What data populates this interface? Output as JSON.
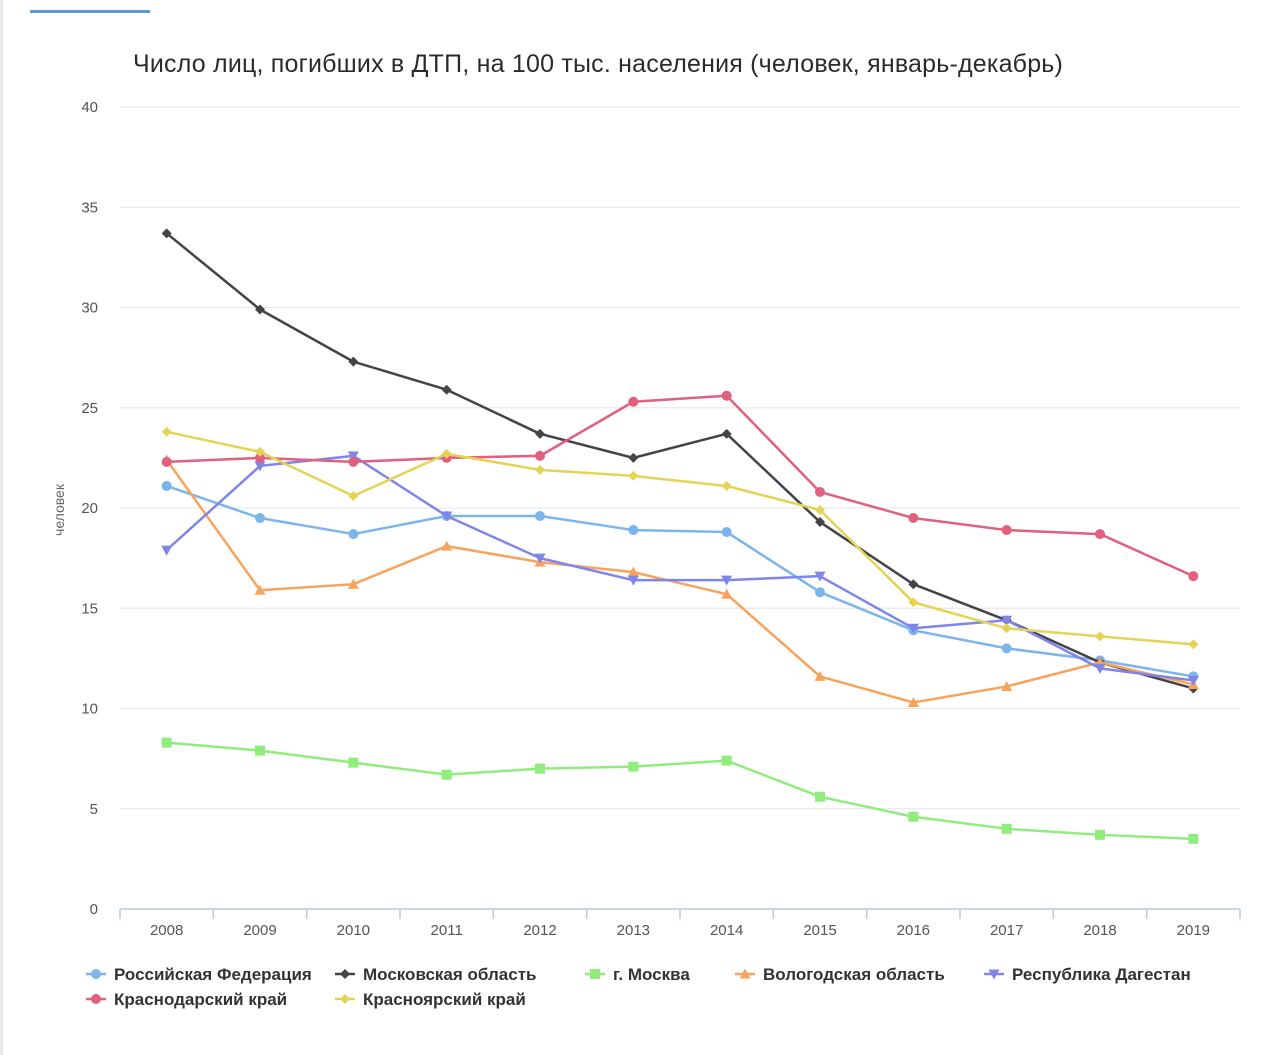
{
  "colors": {
    "background": "#ffffff",
    "grid": "#e6e6e6",
    "axis": "#b8c9dc",
    "accent": "#5b9bd5"
  },
  "chart_data": {
    "type": "line",
    "title": "Число лиц, погибших в ДТП, на 100 тыс. населения (человек, январь-декабрь)",
    "xlabel": "",
    "ylabel": "человек",
    "ylim": [
      0,
      40
    ],
    "yticks": [
      0,
      5,
      10,
      15,
      20,
      25,
      30,
      35,
      40
    ],
    "grid": true,
    "legend_position": "bottom",
    "categories": [
      "2008",
      "2009",
      "2010",
      "2011",
      "2012",
      "2013",
      "2014",
      "2015",
      "2016",
      "2017",
      "2018",
      "2019"
    ],
    "series": [
      {
        "name": "Российская Федерация",
        "color": "#7cb5ec",
        "marker": "circle",
        "values": [
          21.1,
          19.5,
          18.7,
          19.6,
          19.6,
          18.9,
          18.8,
          15.8,
          13.9,
          13.0,
          12.4,
          11.6
        ]
      },
      {
        "name": "Московская область",
        "color": "#434348",
        "marker": "diamond",
        "values": [
          33.7,
          29.9,
          27.3,
          25.9,
          23.7,
          22.5,
          23.7,
          19.3,
          16.2,
          14.4,
          12.3,
          11.0
        ]
      },
      {
        "name": "г. Москва",
        "color": "#90ed7d",
        "marker": "square",
        "values": [
          8.3,
          7.9,
          7.3,
          6.7,
          7.0,
          7.1,
          7.4,
          5.6,
          4.6,
          4.0,
          3.7,
          3.5
        ]
      },
      {
        "name": "Вологодская область",
        "color": "#f7a35c",
        "marker": "triangle",
        "values": [
          22.4,
          15.9,
          16.2,
          18.1,
          17.3,
          16.8,
          15.7,
          11.6,
          10.3,
          11.1,
          12.3,
          11.2
        ]
      },
      {
        "name": "Республика Дагестан",
        "color": "#8085e9",
        "marker": "triangle-down",
        "values": [
          17.9,
          22.1,
          22.6,
          19.6,
          17.5,
          16.4,
          16.4,
          16.6,
          14.0,
          14.4,
          12.0,
          11.4
        ]
      },
      {
        "name": "Краснодарский край",
        "color": "#e0607e",
        "marker": "circle",
        "values": [
          22.3,
          22.5,
          22.3,
          22.5,
          22.6,
          25.3,
          25.6,
          20.8,
          19.5,
          18.9,
          18.7,
          16.6
        ]
      },
      {
        "name": "Красноярский край",
        "color": "#e4d354",
        "marker": "diamond",
        "values": [
          23.8,
          22.8,
          20.6,
          22.7,
          21.9,
          21.6,
          21.1,
          19.9,
          15.3,
          14.0,
          13.6,
          13.2
        ]
      }
    ]
  }
}
